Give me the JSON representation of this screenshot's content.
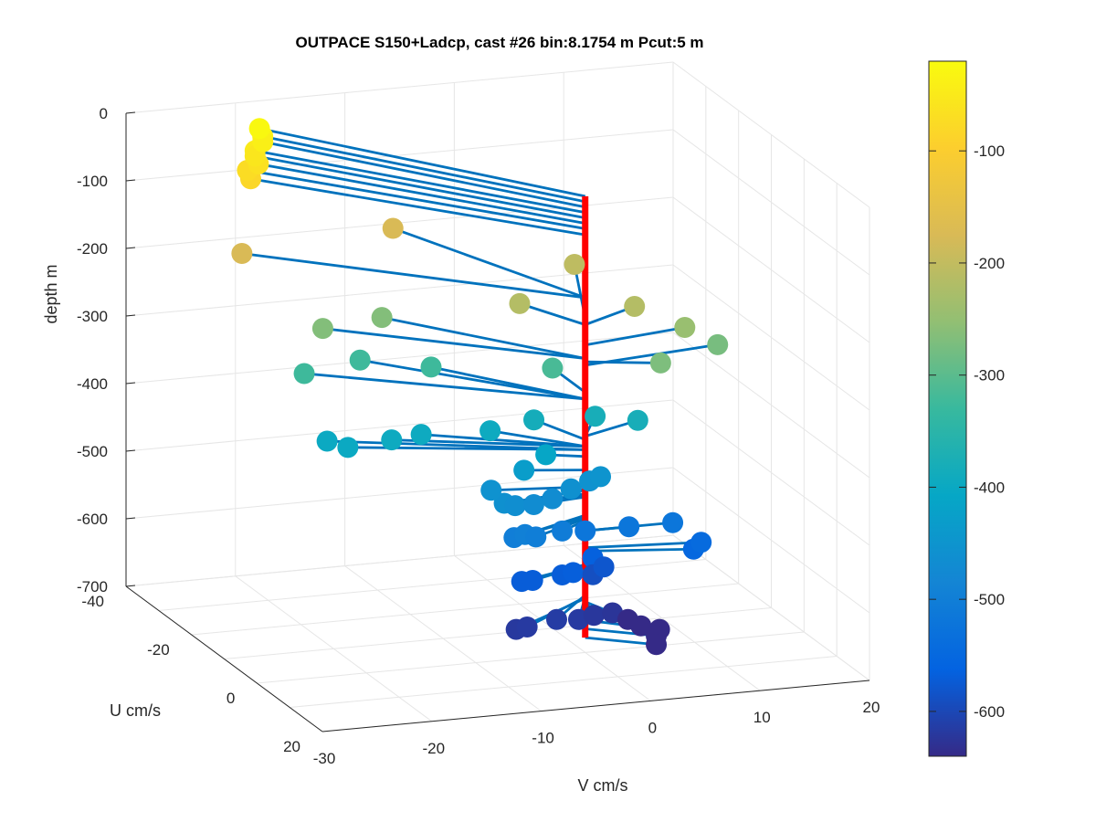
{
  "chart_data": {
    "type": "scatter",
    "subtype": "3d-stem-hodograph",
    "title": "OUTPACE S150+Ladcp, cast #26 bin:8.1754 m  Pcut:5 m",
    "xlabel": "V cm/s",
    "ylabel": "U cm/s",
    "zlabel": "depth m",
    "xlim": [
      -30,
      20
    ],
    "ylim": [
      -40,
      20
    ],
    "zlim": [
      -700,
      0
    ],
    "xticks": [
      "-30",
      "-20",
      "-10",
      "0",
      "10",
      "20"
    ],
    "yticks": [
      "-40",
      "-20",
      "0",
      "20"
    ],
    "zticks": [
      "0",
      "-100",
      "-200",
      "-300",
      "-400",
      "-500",
      "-600",
      "-700"
    ],
    "colorbar": {
      "colormap": "parula",
      "range": [
        -640,
        -20
      ],
      "ticks": [
        "-100",
        "-200",
        "-300",
        "-400",
        "-500",
        "-600"
      ]
    },
    "grid": true,
    "stem_color": "#0072BD",
    "axis_line_color": "#FF0000",
    "points": [
      {
        "v": -19,
        "u": -36,
        "depth": -25
      },
      {
        "v": -19,
        "u": -35,
        "depth": -33
      },
      {
        "v": -19,
        "u": -35,
        "depth": -41
      },
      {
        "v": -20,
        "u": -34,
        "depth": -49
      },
      {
        "v": -20,
        "u": -34,
        "depth": -57
      },
      {
        "v": -20,
        "u": -33,
        "depth": -65
      },
      {
        "v": -21,
        "u": -33,
        "depth": -73
      },
      {
        "v": -21,
        "u": -32,
        "depth": -82
      },
      {
        "v": -23,
        "u": -28,
        "depth": -175
      },
      {
        "v": -8,
        "u": -32,
        "depth": -175
      },
      {
        "v": -3,
        "u": -10,
        "depth": -215
      },
      {
        "v": 5,
        "u": -20,
        "depth": -205
      },
      {
        "v": 6,
        "u": -5,
        "depth": -215
      },
      {
        "v": 10,
        "u": -3,
        "depth": -245
      },
      {
        "v": 6,
        "u": 3,
        "depth": -270
      },
      {
        "v": 13,
        "u": -3,
        "depth": -275
      },
      {
        "v": -12,
        "u": -22,
        "depth": -265
      },
      {
        "v": -18,
        "u": -20,
        "depth": -265
      },
      {
        "v": -20,
        "u": -19,
        "depth": -325
      },
      {
        "v": -14,
        "u": -22,
        "depth": -325
      },
      {
        "v": -9,
        "u": -17,
        "depth": -325
      },
      {
        "v": 0,
        "u": -10,
        "depth": -315
      },
      {
        "v": -20,
        "u": -12,
        "depth": -400
      },
      {
        "v": -19,
        "u": -9,
        "depth": -400
      },
      {
        "v": -15,
        "u": -9,
        "depth": -395
      },
      {
        "v": -12,
        "u": -10,
        "depth": -395
      },
      {
        "v": -6,
        "u": -9,
        "depth": -395
      },
      {
        "v": -2,
        "u": -9,
        "depth": -385
      },
      {
        "v": 3,
        "u": -7,
        "depth": -380
      },
      {
        "v": 6,
        "u": -4,
        "depth": -380
      },
      {
        "v": -3,
        "u": -2,
        "depth": -410
      },
      {
        "v": -5,
        "u": -2,
        "depth": -430
      },
      {
        "v": -8,
        "u": -2,
        "depth": -455
      },
      {
        "v": -8,
        "u": 2,
        "depth": -460
      },
      {
        "v": -7,
        "u": 2,
        "depth": -465
      },
      {
        "v": -5,
        "u": 1,
        "depth": -470
      },
      {
        "v": -3,
        "u": 0,
        "depth": -468
      },
      {
        "v": -1,
        "u": -1,
        "depth": -460
      },
      {
        "v": 1,
        "u": -2,
        "depth": -455
      },
      {
        "v": 2,
        "u": -2,
        "depth": -450
      },
      {
        "v": -8,
        "u": 5,
        "depth": -500
      },
      {
        "v": -7,
        "u": 5,
        "depth": -497
      },
      {
        "v": -6,
        "u": 5,
        "depth": -502
      },
      {
        "v": -3,
        "u": 3,
        "depth": -505
      },
      {
        "v": 0,
        "u": 0,
        "depth": -520
      },
      {
        "v": 4,
        "u": 0,
        "depth": -520
      },
      {
        "v": 8,
        "u": 0,
        "depth": -520
      },
      {
        "v": 10,
        "u": 2,
        "depth": -545
      },
      {
        "v": 9,
        "u": 3,
        "depth": -550
      },
      {
        "v": -7,
        "u": 4,
        "depth": -570
      },
      {
        "v": -6,
        "u": 4,
        "depth": -570
      },
      {
        "v": -3,
        "u": 3,
        "depth": -570
      },
      {
        "v": -2,
        "u": 3,
        "depth": -568
      },
      {
        "v": 1,
        "u": -1,
        "depth": -565
      },
      {
        "v": 2,
        "u": -1,
        "depth": -580
      },
      {
        "v": 1,
        "u": -1,
        "depth": -590
      },
      {
        "v": -9,
        "u": 9,
        "depth": -620
      },
      {
        "v": -8,
        "u": 9,
        "depth": -618
      },
      {
        "v": -5,
        "u": 8,
        "depth": -615
      },
      {
        "v": -3,
        "u": 8,
        "depth": -618
      },
      {
        "v": -1,
        "u": 6,
        "depth": -622
      },
      {
        "v": 1,
        "u": 5,
        "depth": -625
      },
      {
        "v": 3,
        "u": 7,
        "depth": -640
      },
      {
        "v": 5,
        "u": 6,
        "depth": -652
      },
      {
        "v": 3,
        "u": 3,
        "depth": -645
      },
      {
        "v": 5,
        "u": 5,
        "depth": -665
      },
      {
        "v": 5,
        "u": 5,
        "depth": -678
      }
    ]
  }
}
